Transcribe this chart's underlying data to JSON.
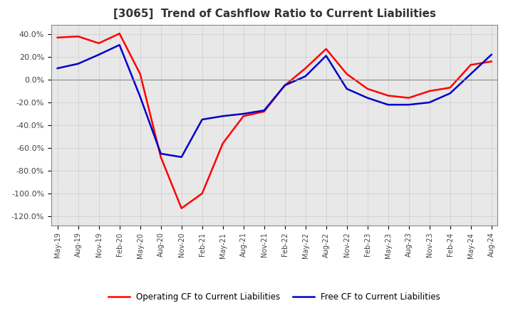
{
  "title": "[3065]  Trend of Cashflow Ratio to Current Liabilities",
  "title_fontsize": 11,
  "x_labels": [
    "May-19",
    "Aug-19",
    "Nov-19",
    "Feb-20",
    "May-20",
    "Aug-20",
    "Nov-20",
    "Feb-21",
    "May-21",
    "Aug-21",
    "Nov-21",
    "Feb-22",
    "May-22",
    "Aug-22",
    "Nov-22",
    "Feb-23",
    "May-23",
    "Aug-23",
    "Nov-23",
    "Feb-24",
    "May-24",
    "Aug-24"
  ],
  "operating_cf": [
    0.37,
    0.38,
    0.32,
    0.405,
    0.05,
    -0.68,
    -1.13,
    -1.0,
    -0.56,
    -0.32,
    -0.28,
    -0.05,
    0.1,
    0.27,
    0.05,
    -0.08,
    -0.14,
    -0.16,
    -0.1,
    -0.07,
    0.13,
    0.16
  ],
  "free_cf": [
    0.1,
    0.14,
    0.22,
    0.305,
    -0.15,
    -0.65,
    -0.68,
    -0.35,
    -0.32,
    -0.3,
    -0.27,
    -0.05,
    0.03,
    0.21,
    -0.08,
    -0.16,
    -0.22,
    -0.22,
    -0.2,
    -0.12,
    0.05,
    0.22
  ],
  "operating_cf_color": "#ff0000",
  "free_cf_color": "#0000cc",
  "ylim": [
    -1.28,
    0.48
  ],
  "yticks": [
    0.4,
    0.2,
    0.0,
    -0.2,
    -0.4,
    -0.6,
    -0.8,
    -1.0,
    -1.2
  ],
  "ytick_labels": [
    "40.0%",
    "20.0%",
    "0.0%",
    "-20.0%",
    "-40.0%",
    "-60.0%",
    "-80.0%",
    "-100.0%",
    "-120.0%"
  ],
  "legend_op": "Operating CF to Current Liabilities",
  "legend_free": "Free CF to Current Liabilities",
  "background_color": "#ffffff",
  "plot_bg_color": "#e8e8e8",
  "grid_color": "#aaaaaa",
  "linewidth": 1.8
}
